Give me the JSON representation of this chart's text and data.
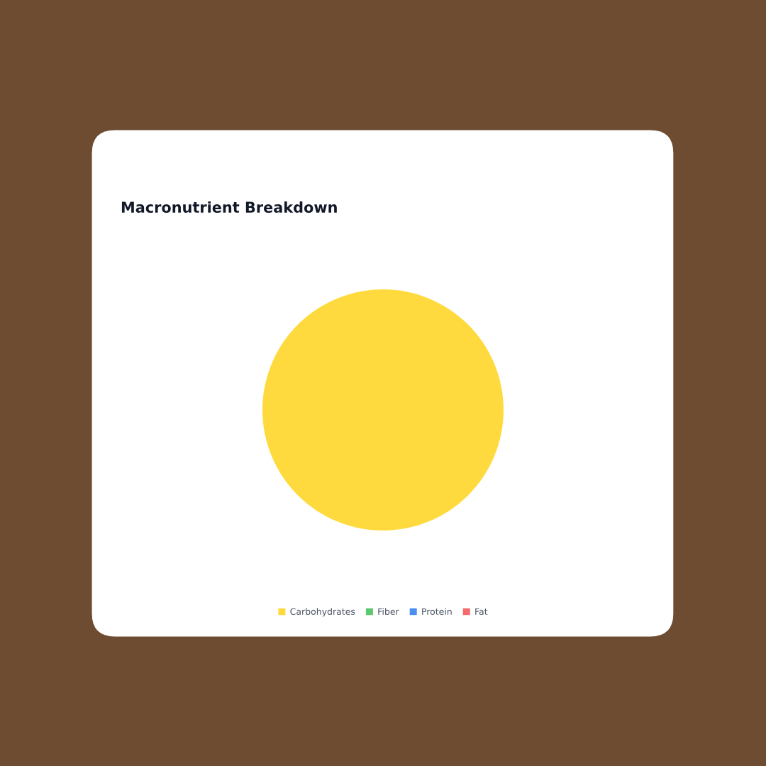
{
  "chart_data": {
    "type": "pie",
    "title": "Macronutrient Breakdown",
    "categories": [
      "Carbohydrates",
      "Fiber",
      "Protein",
      "Fat"
    ],
    "values": [
      100,
      0,
      0,
      0
    ],
    "colors": [
      "#ffda3e",
      "#5cc96e",
      "#4a90f0",
      "#f56a6a"
    ],
    "legend": "bottom"
  }
}
